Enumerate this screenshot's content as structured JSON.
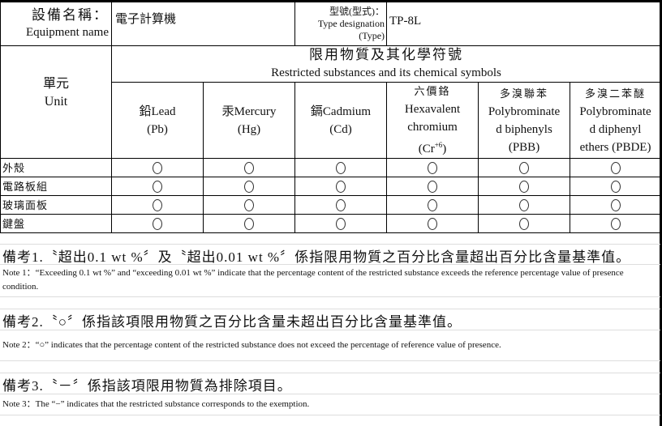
{
  "header": {
    "equipment_label_zh": "設備名稱：",
    "equipment_label_en": "Equipment name",
    "equipment_value": "電子計算機",
    "type_label_zh": "型號(型式)：",
    "type_label_en": "Type designation",
    "type_label_en2": "(Type)",
    "type_value": "TP-8L"
  },
  "table": {
    "unit_zh": "單元",
    "unit_en": "Unit",
    "substances_title_zh": "限用物質及其化學符號",
    "substances_title_en": "Restricted substances and its chemical symbols",
    "columns": [
      {
        "line1": "鉛Lead",
        "line2": "(Pb)"
      },
      {
        "line1": "汞Mercury",
        "line2": "(Hg)"
      },
      {
        "line1": "鎘Cadmium",
        "line2": "(Cd)"
      },
      {
        "line0": "六價鉻",
        "line1": "Hexavalent",
        "line2": "chromium",
        "line3": "(Cr",
        "sup": "+6",
        "line3b": ")"
      },
      {
        "line0": "多溴聯苯",
        "line1": "Polybrominate",
        "line2": "d biphenyls",
        "line3": "(PBB)"
      },
      {
        "line0": "多溴二苯醚",
        "line1": "Polybrominate",
        "line2": "d diphenyl",
        "line3": "ethers (PBDE)"
      }
    ],
    "rows": [
      {
        "unit": "外殼",
        "values": [
          "○",
          "○",
          "○",
          "○",
          "○",
          "○"
        ]
      },
      {
        "unit": "電路板組",
        "values": [
          "○",
          "○",
          "○",
          "○",
          "○",
          "○"
        ]
      },
      {
        "unit": "玻璃面板",
        "values": [
          "○",
          "○",
          "○",
          "○",
          "○",
          "○"
        ]
      },
      {
        "unit": "鍵盤",
        "values": [
          "○",
          "○",
          "○",
          "○",
          "○",
          "○"
        ]
      }
    ]
  },
  "notes": [
    {
      "zh": "備考1.〝超出0.1 wt %〞及〝超出0.01 wt %〞係指限用物質之百分比含量超出百分比含量基準值。",
      "en": "Note 1：“Exceeding 0.1 wt %” and “exceeding 0.01 wt %” indicate that the percentage content of the restricted substance exceeds the reference percentage value of presence condition."
    },
    {
      "zh": "備考2.〝○〞係指該項限用物質之百分比含量未超出百分比含量基準值。",
      "en": "Note 2：“○” indicates that the percentage content of the restricted substance does not exceed the percentage of reference value of presence."
    },
    {
      "zh": "備考3.〝－〞係指該項限用物質為排除項目。",
      "en": "Note 3：The “−” indicates that the restricted substance corresponds to the exemption."
    }
  ]
}
